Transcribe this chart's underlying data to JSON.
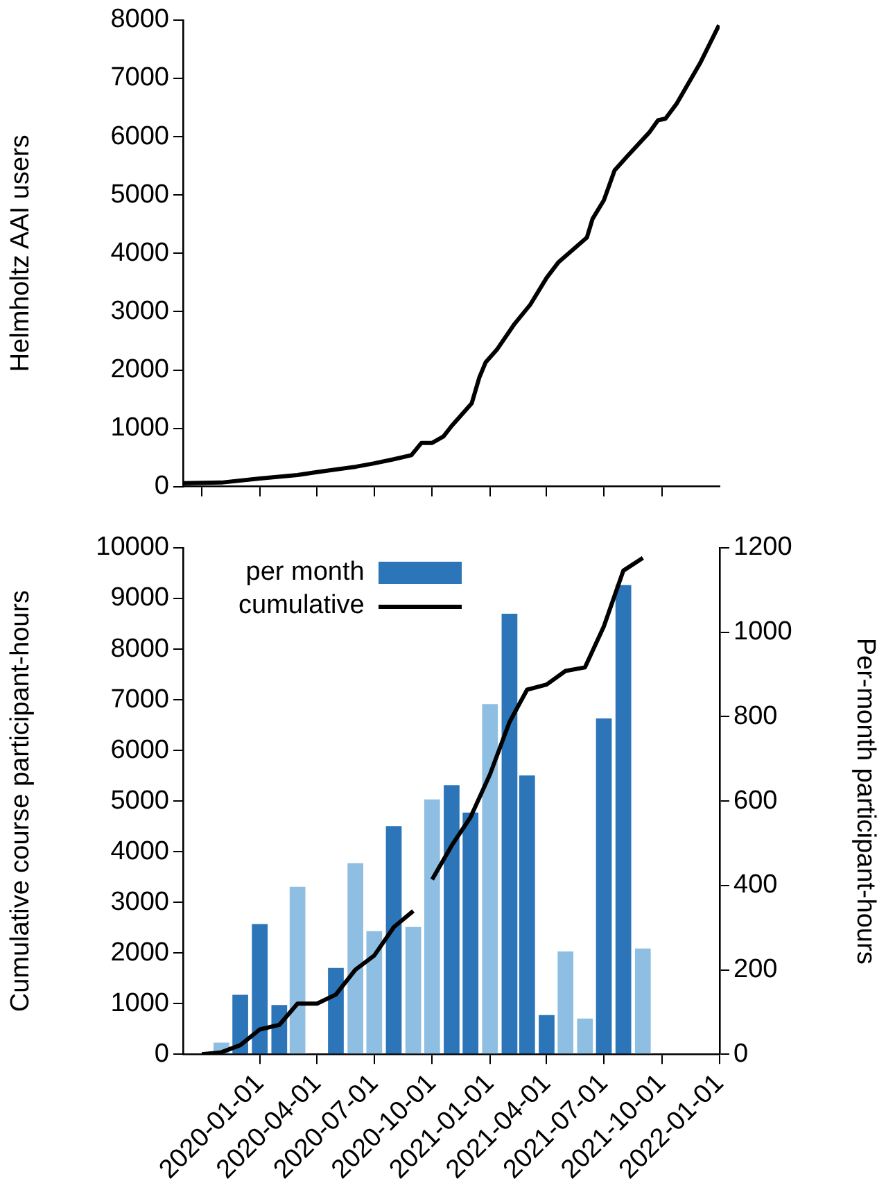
{
  "chart_data": [
    {
      "type": "line",
      "ylabel": "Helmholtz AAI users",
      "color": "#000000",
      "tick_labels": "y",
      "grid": false,
      "x": [
        "2019-09-01",
        "2019-11-01",
        "2020-01-01",
        "2020-03-01",
        "2020-04-01",
        "2020-06-01",
        "2020-07-01",
        "2020-08-01",
        "2020-08-29",
        "2020-09-14",
        "2020-10-01",
        "2020-10-19",
        "2020-11-01",
        "2020-12-03",
        "2020-12-15",
        "2020-12-25",
        "2021-01-12",
        "2021-02-09",
        "2021-03-06",
        "2021-04-01",
        "2021-04-20",
        "2021-06-04",
        "2021-06-13",
        "2021-07-01",
        "2021-07-18",
        "2021-08-06",
        "2021-09-11",
        "2021-09-25",
        "2021-10-07",
        "2021-10-25",
        "2021-12-01",
        "2021-12-31"
      ],
      "values": [
        60,
        70,
        140,
        200,
        250,
        340,
        400,
        470,
        540,
        750,
        750,
        860,
        1040,
        1430,
        1870,
        2130,
        2350,
        2790,
        3120,
        3580,
        3850,
        4270,
        4590,
        4910,
        5420,
        5650,
        6070,
        6280,
        6310,
        6570,
        7260,
        7910
      ],
      "xlim": [
        "2019-09-01",
        "2022-01-01"
      ],
      "xticks": [
        "2019-10-01",
        "2020-01-01",
        "2020-04-01",
        "2020-07-01",
        "2020-10-01",
        "2021-01-01",
        "2021-04-01",
        "2021-07-01",
        "2021-10-01"
      ],
      "ylim": [
        0,
        8000
      ],
      "yticks": [
        0,
        1000,
        2000,
        3000,
        4000,
        5000,
        6000,
        7000,
        8000
      ]
    },
    {
      "type": "bar",
      "ylabel": "Cumulative course participant-hours",
      "y2label": "Per-month participant-hours",
      "legend": "top left",
      "grid": false,
      "series": [
        {
          "name": "per month",
          "type": "bar",
          "axis": "y2",
          "x": [
            "2019-11-01",
            "2019-12-01",
            "2020-01-01",
            "2020-02-01",
            "2020-03-01",
            "2020-04-01",
            "2020-05-01",
            "2020-06-01",
            "2020-07-01",
            "2020-08-01",
            "2020-09-01",
            "2020-10-01",
            "2020-11-01",
            "2020-12-01",
            "2021-01-01",
            "2021-02-01",
            "2021-03-01",
            "2021-04-01",
            "2021-05-01",
            "2021-06-01",
            "2021-07-01",
            "2021-08-01",
            "2021-09-01"
          ],
          "values": [
            30,
            143,
            311,
            119,
            399,
            0,
            207,
            455,
            294,
            543,
            304,
            606,
            640,
            575,
            832,
            1046,
            663,
            95,
            246,
            87,
            798,
            1114,
            253
          ],
          "colors": [
            "#8ebfe3",
            "#2b75b8",
            "#2b75b8",
            "#2b75b8",
            "#8ebfe3",
            "#8ebfe3",
            "#2b75b8",
            "#8ebfe3",
            "#8ebfe3",
            "#2b75b8",
            "#8ebfe3",
            "#8ebfe3",
            "#2b75b8",
            "#2b75b8",
            "#8ebfe3",
            "#2b75b8",
            "#2b75b8",
            "#2b75b8",
            "#8ebfe3",
            "#8ebfe3",
            "#2b75b8",
            "#2b75b8",
            "#8ebfe3"
          ]
        },
        {
          "name": "cumulative",
          "type": "line",
          "color": "#000000",
          "x": [
            "2019-10-01",
            "2019-11-01",
            "2019-12-01",
            "2020-01-01",
            "2020-02-01",
            "2020-03-01",
            "2020-04-01",
            "2020-05-01",
            "2020-06-01",
            "2020-07-01",
            "2020-08-01",
            "2020-09-01"
          ],
          "values": [
            0,
            40,
            180,
            490,
            580,
            1000,
            1000,
            1180,
            1670,
            1950,
            2510,
            2830
          ]
        },
        {
          "type": "line",
          "color": "#000000",
          "x": [
            "2020-10-01",
            "2020-11-01",
            "2020-12-01",
            "2021-01-01",
            "2021-02-01",
            "2021-03-01",
            "2021-04-01",
            "2021-05-01",
            "2021-06-01",
            "2021-07-01",
            "2021-08-01",
            "2021-09-01"
          ],
          "values": [
            3450,
            4120,
            4680,
            5530,
            6560,
            7200,
            7300,
            7570,
            7640,
            8450,
            9550,
            9800
          ]
        }
      ],
      "xlim": [
        "2019-09-01",
        "2022-01-01"
      ],
      "xticks": [
        "2020-01-01",
        "2020-04-01",
        "2020-07-01",
        "2020-10-01",
        "2021-01-01",
        "2021-04-01",
        "2021-07-01",
        "2021-10-01",
        "2022-01-01"
      ],
      "ylim": [
        0,
        10000
      ],
      "yticks": [
        0,
        1000,
        2000,
        3000,
        4000,
        5000,
        6000,
        7000,
        8000,
        9000,
        10000
      ],
      "y2lim": [
        0,
        1200
      ],
      "y2ticks": [
        0,
        200,
        400,
        600,
        800,
        1000,
        1200
      ]
    }
  ]
}
